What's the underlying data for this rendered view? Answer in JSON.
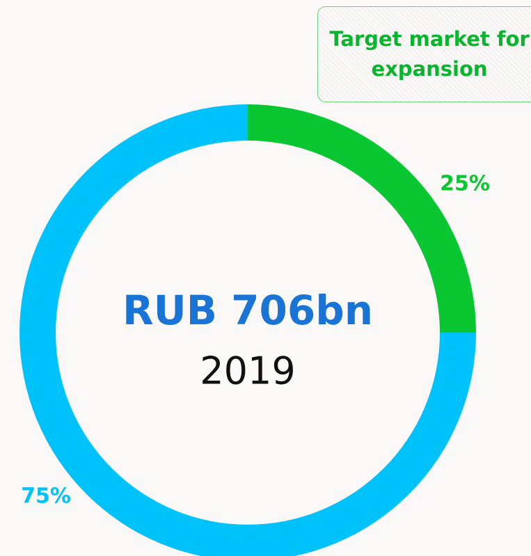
{
  "chart_data": {
    "type": "pie",
    "donut": true,
    "values": [
      25,
      75
    ],
    "value_labels": [
      "25%",
      "75%"
    ],
    "colors": [
      "#0ac631",
      "#00c2fb"
    ],
    "center_text": "RUB 706bn",
    "center_subtext": "2019",
    "annotation": "Target market for expansion"
  }
}
